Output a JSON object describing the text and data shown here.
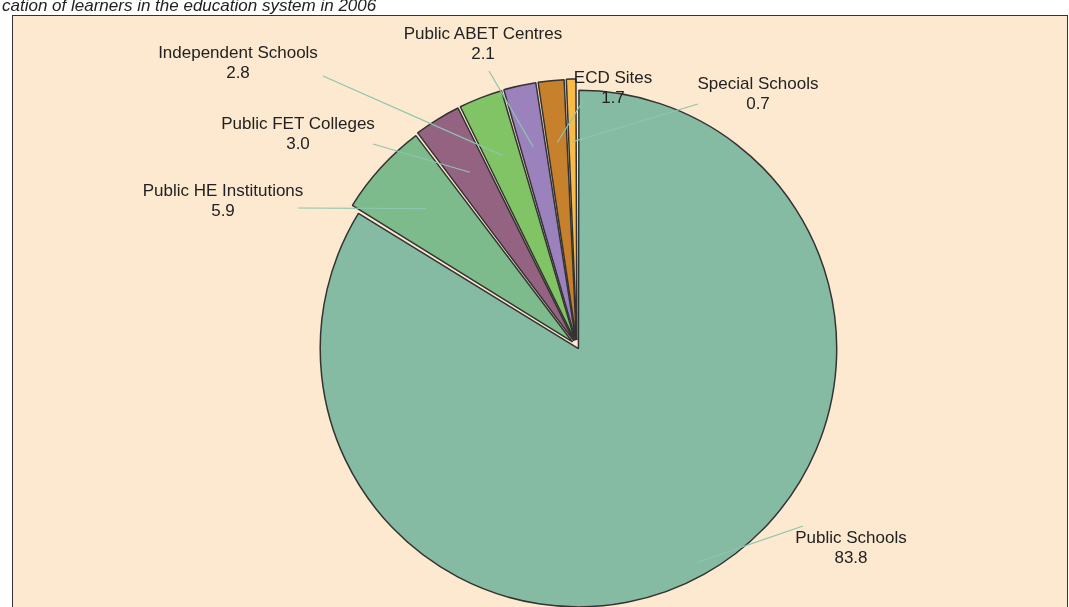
{
  "chart_data": {
    "type": "pie",
    "title": "cation of learners in the education system in 2006",
    "categories": [
      "Public Schools",
      "Public HE Institutions",
      "Public FET Colleges",
      "Independent Schools",
      "Public ABET Centres",
      "ECD Sites",
      "Special Schools"
    ],
    "values": [
      83.8,
      5.9,
      3.0,
      2.8,
      2.1,
      1.7,
      0.7
    ],
    "colors": [
      "#86bba3",
      "#7dbb8c",
      "#946381",
      "#80c465",
      "#9b82bd",
      "#c7802c",
      "#f6bb48"
    ],
    "value_labels": [
      "83.8",
      "5.9",
      "3.0",
      "2.8",
      "2.1",
      "1.7",
      "0.7"
    ],
    "legend": false
  }
}
